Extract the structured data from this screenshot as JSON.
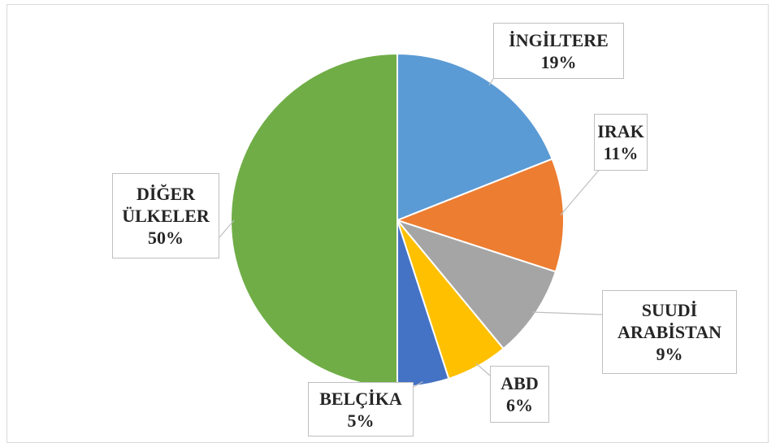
{
  "chart_data": {
    "type": "pie",
    "categories": [
      "İNGİLTERE",
      "IRAK",
      "SUUDİ ARABİSTAN",
      "ABD",
      "BELÇİKA",
      "DİĞER ÜLKELER"
    ],
    "values": [
      19,
      11,
      9,
      6,
      5,
      50
    ],
    "value_labels": [
      "19%",
      "11%",
      "9%",
      "6%",
      "5%",
      "50%"
    ],
    "colors": [
      "#5b9bd5",
      "#ed7d31",
      "#a5a5a5",
      "#ffc000",
      "#4472c4",
      "#70ad47"
    ]
  }
}
